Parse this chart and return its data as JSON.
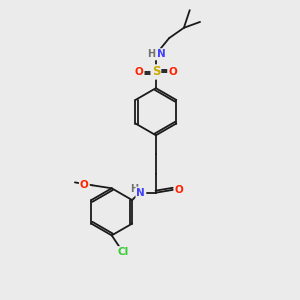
{
  "bg_color": "#ebebeb",
  "bond_color": "#1a1a1a",
  "atom_colors": {
    "N": "#4040ff",
    "H": "#707070",
    "O": "#ff2200",
    "S": "#ccaa00",
    "Cl": "#33cc33",
    "C": "#1a1a1a"
  },
  "font_size": 7.5
}
